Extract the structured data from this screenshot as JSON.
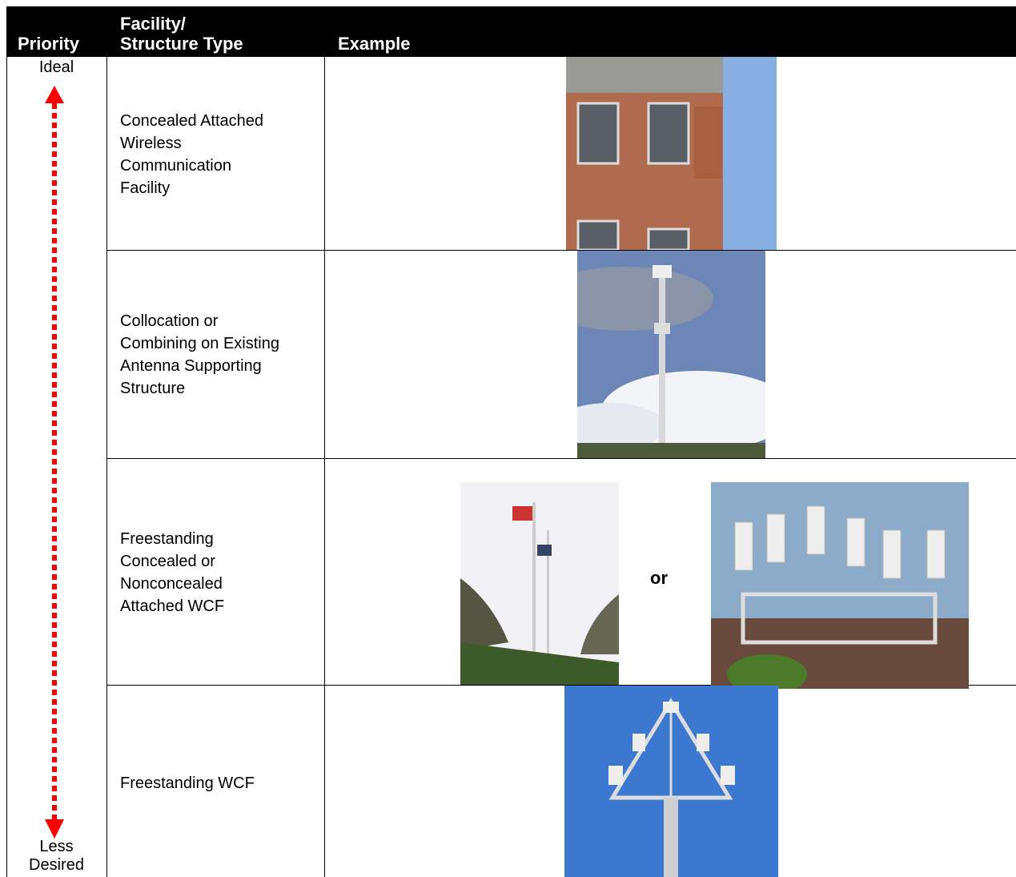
{
  "header": {
    "priority": "Priority",
    "type": [
      "Facility/",
      "Structure Type"
    ],
    "example": "Example"
  },
  "priority": {
    "top": "Ideal",
    "bottom": [
      "Less",
      "Desired"
    ]
  },
  "rows": [
    {
      "type": [
        "Concealed Attached",
        "Wireless",
        "Communication",
        "Facility"
      ]
    },
    {
      "type": [
        "Collocation or",
        "Combining on Existing",
        "Antenna Supporting",
        "Structure"
      ]
    },
    {
      "type": [
        "Freestanding",
        "Concealed or",
        "Nonconcealed",
        "Attached WCF"
      ],
      "separator": "or"
    },
    {
      "type": [
        "Freestanding WCF"
      ]
    }
  ]
}
